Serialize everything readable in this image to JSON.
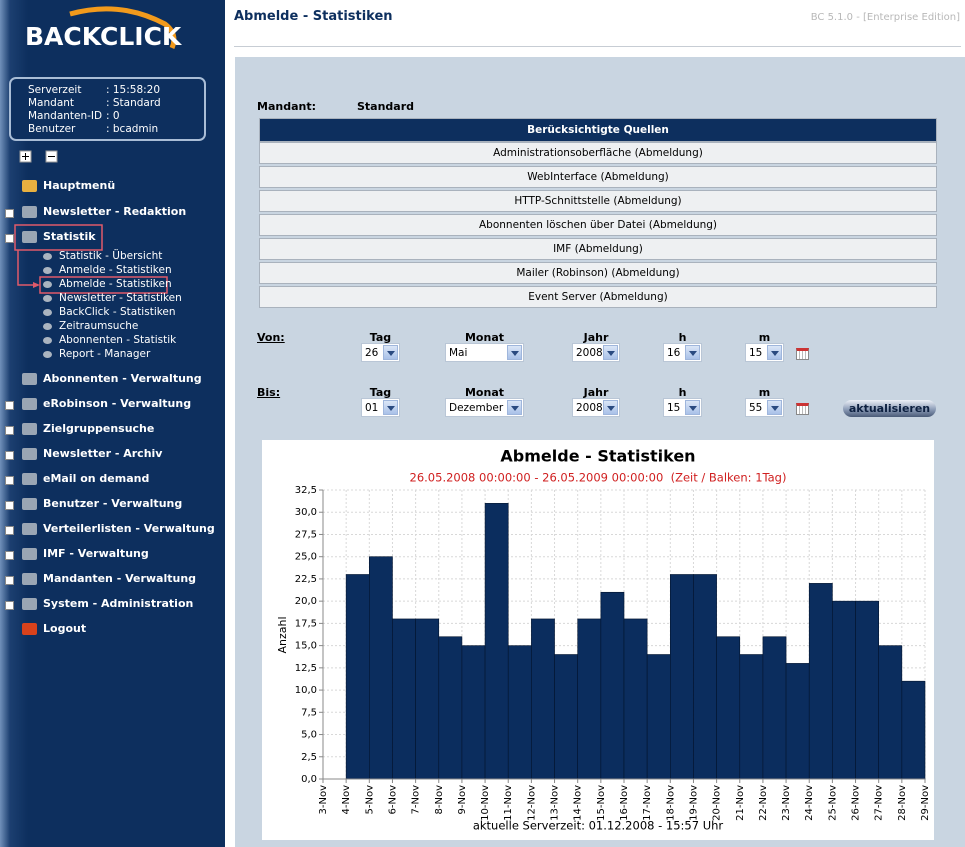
{
  "header": {
    "title": "Abmelde - Statistiken",
    "version": "BC 5.1.0 - [Enterprise Edition]"
  },
  "sidebar": {
    "logo": "BACKCLICK",
    "info": [
      {
        "label": "Serverzeit",
        "value": ": 15:58:20"
      },
      {
        "label": "Mandant",
        "value": ": Standard"
      },
      {
        "label": "Mandanten-ID",
        "value": ": 0"
      },
      {
        "label": "Benutzer",
        "value": ": bcadmin"
      }
    ],
    "menu_top": [
      "Hauptmenü",
      "Newsletter - Redaktion",
      "Statistik"
    ],
    "submenu": [
      "Statistik - Übersicht",
      "Anmelde - Statistiken",
      "Abmelde - Statistiken",
      "Newsletter - Statistiken",
      "BackClick - Statistiken",
      "Zeitraumsuche",
      "Abonnenten - Statistik",
      "Report - Manager"
    ],
    "menu_bottom": [
      "Abonnenten - Verwaltung",
      "eRobinson - Verwaltung",
      "Zielgruppensuche",
      "Newsletter - Archiv",
      "eMail on demand",
      "Benutzer - Verwaltung",
      "Verteilerlisten - Verwaltung",
      "IMF - Verwaltung",
      "Mandanten - Verwaltung",
      "System - Administration",
      "Logout"
    ]
  },
  "mandant": {
    "label": "Mandant:",
    "value": "Standard"
  },
  "sources": {
    "header": "Berücksichtigte Quellen",
    "rows": [
      "Administrationsoberfläche (Abmeldung)",
      "WebInterface (Abmeldung)",
      "HTTP-Schnittstelle (Abmeldung)",
      "Abonnenten löschen über Datei (Abmeldung)",
      "IMF (Abmeldung)",
      "Mailer (Robinson) (Abmeldung)",
      "Event Server (Abmeldung)"
    ]
  },
  "form": {
    "von": {
      "label": "Von:",
      "fields": [
        {
          "label": "Tag",
          "value": "26"
        },
        {
          "label": "Monat",
          "value": "Mai"
        },
        {
          "label": "Jahr",
          "value": "2008"
        },
        {
          "label": "h",
          "value": "16"
        },
        {
          "label": "m",
          "value": "15"
        }
      ]
    },
    "bis": {
      "label": "Bis:",
      "fields": [
        {
          "label": "Tag",
          "value": "01"
        },
        {
          "label": "Monat",
          "value": "Dezember"
        },
        {
          "label": "Jahr",
          "value": "2008"
        },
        {
          "label": "h",
          "value": "15"
        },
        {
          "label": "m",
          "value": "55"
        }
      ]
    },
    "button": "aktualisieren"
  },
  "chart_data": {
    "type": "bar",
    "title": "Abmelde - Statistiken",
    "subtitle": "26.05.2008 00:00:00 - 26.05.2009 00:00:00  (Zeit / Balken: 1Tag)",
    "footer": "aktuelle Serverzeit: 01.12.2008 - 15:57 Uhr",
    "y_label": "Anzahl",
    "color": "#0b2d5e",
    "grid": true,
    "categories": [
      "3-Nov",
      "4-Nov",
      "5-Nov",
      "6-Nov",
      "7-Nov",
      "8-Nov",
      "9-Nov",
      "10-Nov",
      "11-Nov",
      "12-Nov",
      "13-Nov",
      "14-Nov",
      "15-Nov",
      "16-Nov",
      "17-Nov",
      "18-Nov",
      "19-Nov",
      "20-Nov",
      "21-Nov",
      "22-Nov",
      "23-Nov",
      "24-Nov",
      "25-Nov",
      "26-Nov",
      "27-Nov",
      "28-Nov",
      "29-Nov"
    ],
    "values": [
      null,
      23,
      25,
      18,
      18,
      16,
      15,
      31,
      15,
      18,
      14,
      18,
      21,
      18,
      14,
      23,
      23,
      16,
      14,
      16,
      13,
      22,
      20,
      20,
      15,
      11,
      null
    ],
    "ylim": [
      0,
      32.5
    ],
    "yticks": [
      {
        "value": 0,
        "label": "0,0"
      },
      {
        "value": 2.5,
        "label": "2,5"
      },
      {
        "value": 5,
        "label": "5,0"
      },
      {
        "value": 7.5,
        "label": "7,5"
      },
      {
        "value": 10,
        "label": "10,0"
      },
      {
        "value": 12.5,
        "label": "12,5"
      },
      {
        "value": 15,
        "label": "15,0"
      },
      {
        "value": 17.5,
        "label": "17,5"
      },
      {
        "value": 20,
        "label": "20,0"
      },
      {
        "value": 22.5,
        "label": "22,5"
      },
      {
        "value": 25,
        "label": "25,0"
      },
      {
        "value": 27.5,
        "label": "27,5"
      },
      {
        "value": 30,
        "label": "30,0"
      },
      {
        "value": 32.5,
        "label": "32,5"
      }
    ]
  }
}
